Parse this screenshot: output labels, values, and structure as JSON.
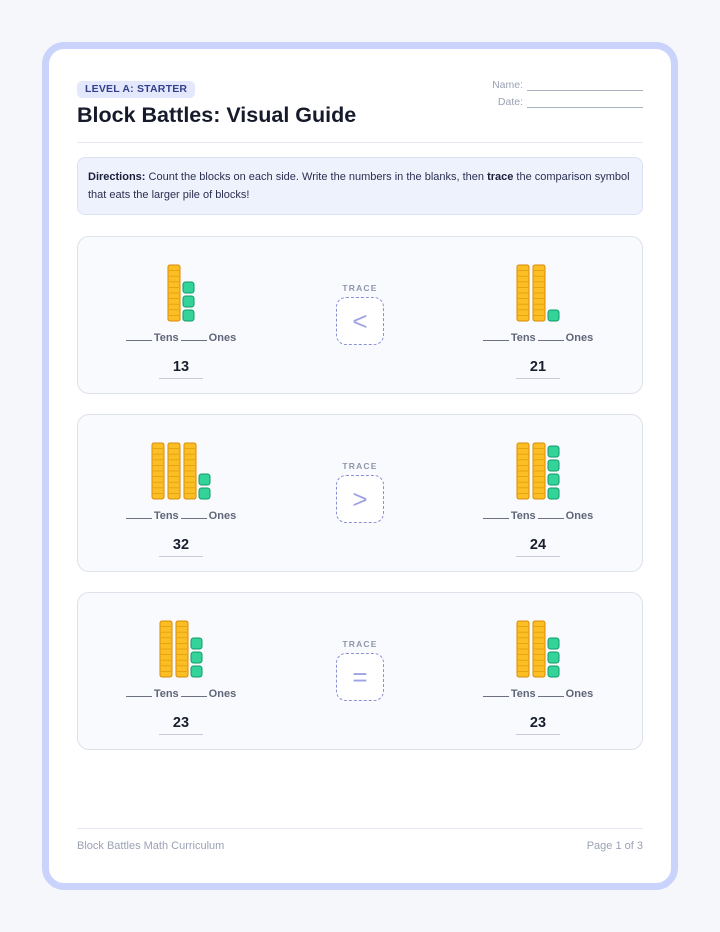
{
  "header": {
    "level_badge": "LEVEL A: STARTER",
    "title": "Block Battles: Visual Guide",
    "name_label": "Name:",
    "date_label": "Date:"
  },
  "directions": {
    "lead": "Directions:",
    "text_1": " Count the blocks on each side. Write the numbers in the blanks, then ",
    "emphasis": "trace",
    "text_2": " the comparison symbol that eats the larger pile of blocks!"
  },
  "labels": {
    "tens": "Tens",
    "ones": "Ones",
    "trace": "TRACE"
  },
  "problems": [
    {
      "left": {
        "tens": 1,
        "ones": 3,
        "answer": "13"
      },
      "symbol": "<",
      "right": {
        "tens": 2,
        "ones": 1,
        "answer": "21"
      }
    },
    {
      "left": {
        "tens": 3,
        "ones": 2,
        "answer": "32"
      },
      "symbol": ">",
      "right": {
        "tens": 2,
        "ones": 4,
        "answer": "24"
      }
    },
    {
      "left": {
        "tens": 2,
        "ones": 3,
        "answer": "23"
      },
      "symbol": "=",
      "right": {
        "tens": 2,
        "ones": 3,
        "answer": "23"
      }
    }
  ],
  "colors": {
    "ten_rod_fill": "#fbbf24",
    "ten_rod_stroke": "#d98a06",
    "one_cube_fill": "#34d399",
    "one_cube_stroke": "#0f9b68",
    "accent": "#c9d3fb"
  },
  "footer": {
    "left": "Block Battles Math Curriculum",
    "right": "Page 1 of 3"
  }
}
